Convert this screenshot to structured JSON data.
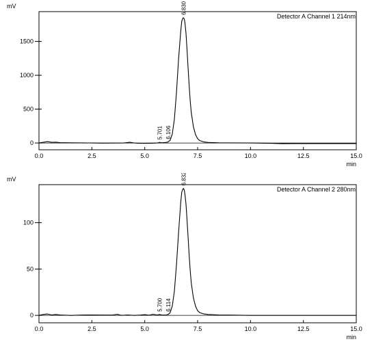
{
  "chart_data": [
    {
      "type": "line",
      "title": "Detector A Channel 1 214nm",
      "ylabel": "mV",
      "xlabel": "min",
      "xlim": [
        0,
        15
      ],
      "ylim": [
        -100,
        1940
      ],
      "xticks": [
        "0.0",
        "2.5",
        "5.0",
        "7.5",
        "10.0",
        "12.5",
        "15.0"
      ],
      "xtick_values": [
        0,
        2.5,
        5,
        7.5,
        10,
        12.5,
        15
      ],
      "yticks": [
        "0",
        "500",
        "1000",
        "1500"
      ],
      "ytick_values": [
        0,
        500,
        1000,
        1500
      ],
      "grid": false,
      "series": [
        {
          "color": "#000000",
          "x": [
            0,
            0.2,
            0.4,
            0.6,
            0.8,
            1.0,
            1.5,
            2.0,
            2.5,
            3.0,
            3.5,
            4.0,
            4.3,
            4.5,
            4.7,
            5.0,
            5.3,
            5.6,
            5.7,
            5.8,
            6.0,
            6.1,
            6.2,
            6.3,
            6.4,
            6.5,
            6.6,
            6.7,
            6.75,
            6.8,
            6.83,
            6.87,
            6.9,
            6.95,
            7.0,
            7.05,
            7.1,
            7.15,
            7.2,
            7.3,
            7.4,
            7.5,
            7.6,
            7.8,
            8.0,
            8.5,
            9.0,
            10.0,
            11.0,
            11.5,
            12.0,
            13.0,
            14.0,
            15.0
          ],
          "y": [
            0,
            10,
            20,
            10,
            12,
            5,
            3,
            2,
            0,
            -2,
            -1,
            0,
            10,
            0,
            -3,
            -5,
            -3,
            0,
            10,
            3,
            8,
            15,
            40,
            130,
            350,
            750,
            1250,
            1650,
            1800,
            1840,
            1850,
            1830,
            1780,
            1620,
            1380,
            1100,
            850,
            620,
            450,
            240,
            125,
            65,
            35,
            15,
            8,
            3,
            2,
            0,
            -5,
            -10,
            -8,
            -8,
            -8,
            -8
          ]
        }
      ],
      "peak_labels": [
        {
          "label": "5.701",
          "x": 5.701,
          "y": 10
        },
        {
          "label": "6.106",
          "x": 6.106,
          "y": 15
        },
        {
          "label": "6.830",
          "x": 6.83,
          "y": 1850
        }
      ]
    },
    {
      "type": "line",
      "title": "Detector A Channel 2 280nm",
      "ylabel": "mV",
      "xlabel": "min",
      "xlim": [
        0,
        15
      ],
      "ylim": [
        -8,
        141
      ],
      "xticks": [
        "0.0",
        "2.5",
        "5.0",
        "7.5",
        "10.0",
        "12.5",
        "15.0"
      ],
      "xtick_values": [
        0,
        2.5,
        5,
        7.5,
        10,
        12.5,
        15
      ],
      "yticks": [
        "0",
        "50",
        "100"
      ],
      "ytick_values": [
        0,
        50,
        100
      ],
      "grid": false,
      "series": [
        {
          "color": "#000000",
          "x": [
            0,
            0.2,
            0.4,
            0.6,
            0.8,
            1.0,
            1.5,
            2.0,
            2.5,
            3.0,
            3.5,
            3.7,
            3.9,
            4.2,
            4.5,
            4.8,
            5.0,
            5.2,
            5.4,
            5.6,
            5.7,
            5.8,
            6.0,
            6.11,
            6.2,
            6.3,
            6.4,
            6.5,
            6.6,
            6.7,
            6.75,
            6.8,
            6.83,
            6.87,
            6.9,
            6.95,
            7.0,
            7.05,
            7.1,
            7.15,
            7.2,
            7.3,
            7.4,
            7.5,
            7.6,
            7.8,
            8.0,
            8.5,
            9.0,
            10.0,
            11.0,
            12.0,
            13.0,
            14.0,
            15.0
          ],
          "y": [
            0,
            1,
            1.5,
            0.5,
            1,
            0.5,
            0,
            0.3,
            0.5,
            0.3,
            0.5,
            1.2,
            0,
            0.5,
            0,
            0.3,
            0.8,
            0.2,
            1.2,
            0.3,
            1.0,
            0.3,
            0.5,
            1.0,
            3,
            10,
            26,
            55,
            90,
            122,
            133,
            136,
            137,
            135,
            131,
            120,
            103,
            84,
            65,
            48,
            35,
            19,
            10,
            5,
            3,
            1.5,
            1,
            0.5,
            0.3,
            0,
            0,
            0,
            0,
            0,
            0
          ]
        }
      ],
      "peak_labels": [
        {
          "label": "5.700",
          "x": 5.7,
          "y": 1.0
        },
        {
          "label": "6.114",
          "x": 6.114,
          "y": 1.0
        },
        {
          "label": "6.832",
          "x": 6.832,
          "y": 137
        }
      ]
    }
  ]
}
